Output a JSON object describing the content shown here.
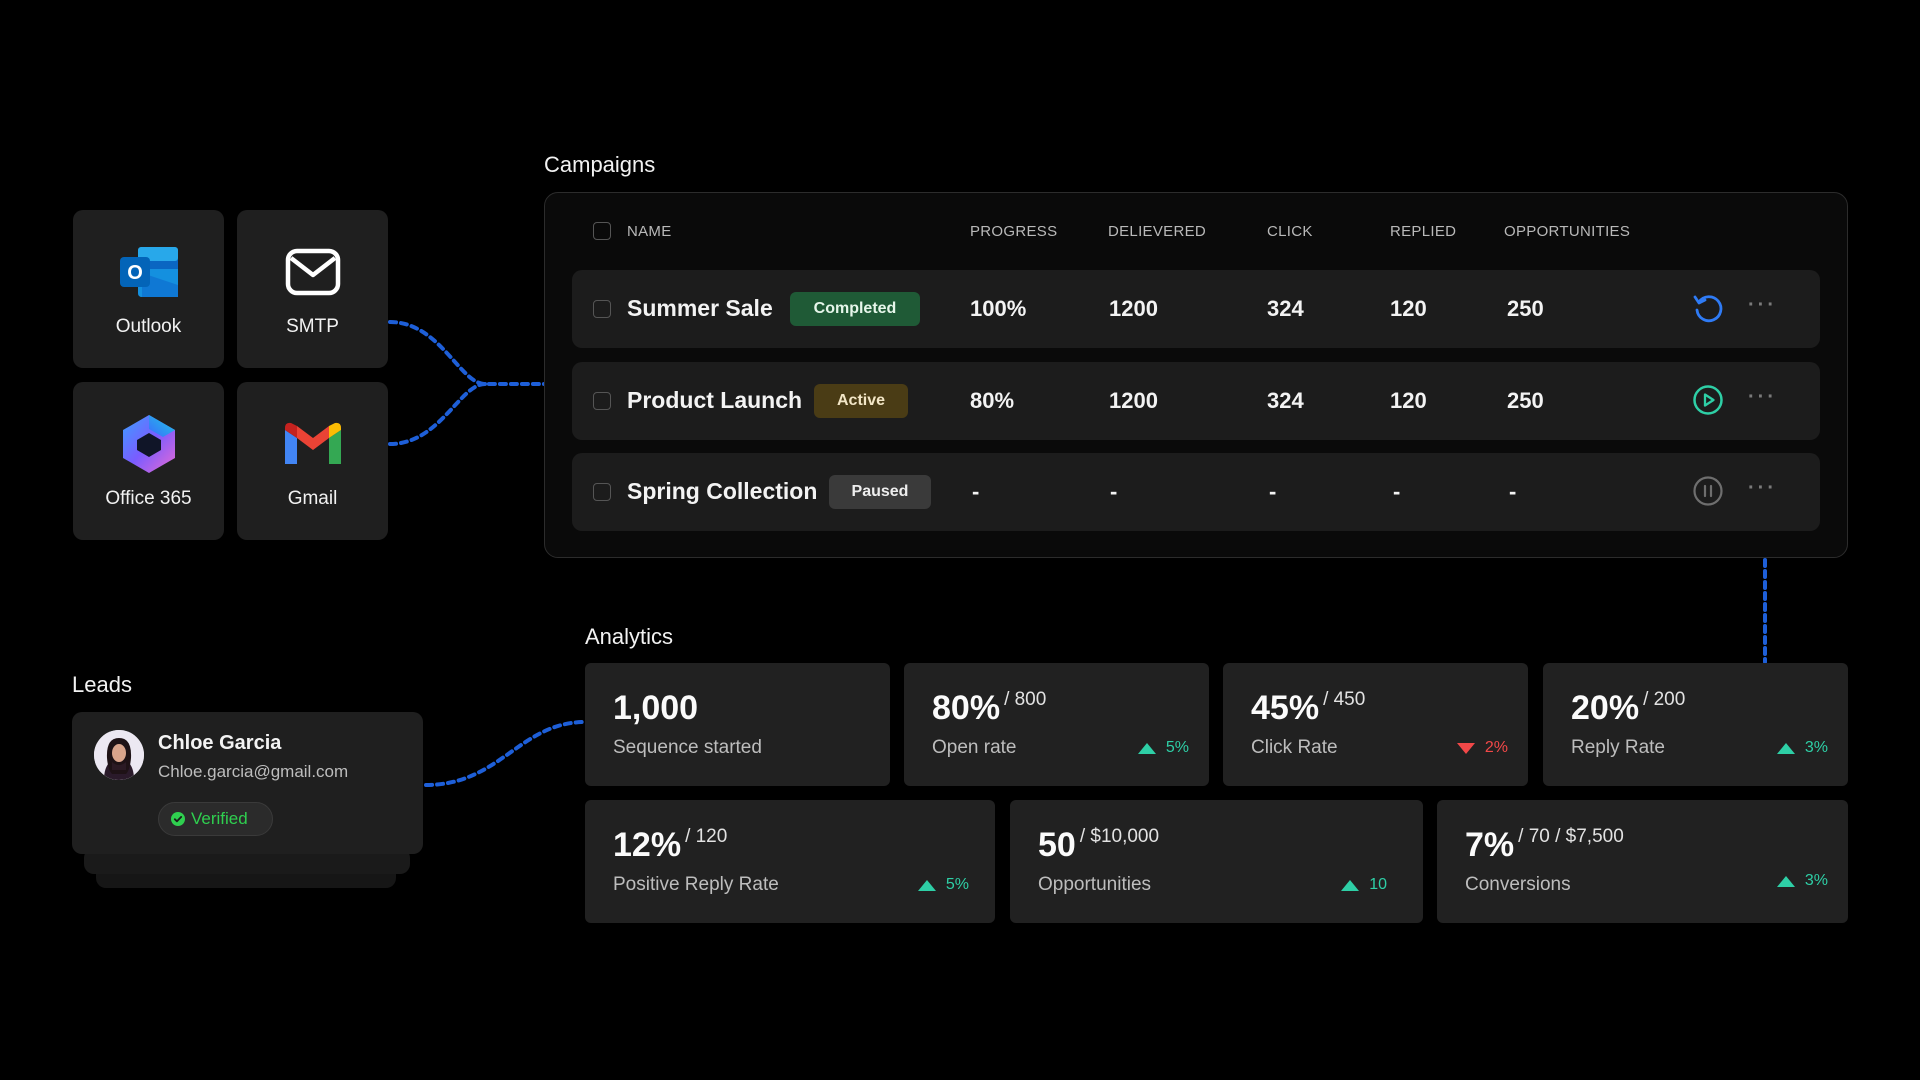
{
  "integrations": [
    {
      "label": "Outlook",
      "icon": "outlook-icon"
    },
    {
      "label": "SMTP",
      "icon": "mail-envelope-icon"
    },
    {
      "label": "Office 365",
      "icon": "office365-icon"
    },
    {
      "label": "Gmail",
      "icon": "gmail-icon"
    }
  ],
  "campaigns": {
    "title": "Campaigns",
    "columns": [
      "NAME",
      "PROGRESS",
      "DELIEVERED",
      "CLICK",
      "REPLIED",
      "OPPORTUNITIES"
    ],
    "rows": [
      {
        "name": "Summer Sale",
        "status": "Completed",
        "progress": "100%",
        "delivered": "1200",
        "click": "324",
        "replied": "120",
        "opportunities": "250",
        "action_icon": "restart-icon",
        "more": "···"
      },
      {
        "name": "Product Launch",
        "status": "Active",
        "progress": "80%",
        "delivered": "1200",
        "click": "324",
        "replied": "120",
        "opportunities": "250",
        "action_icon": "play-icon",
        "more": "···"
      },
      {
        "name": "Spring Collection",
        "status": "Paused",
        "progress": "-",
        "delivered": "-",
        "click": "-",
        "replied": "-",
        "opportunities": "-",
        "action_icon": "pause-icon",
        "more": "···"
      }
    ],
    "status_colors": {
      "Completed": "#1f5a36",
      "Active": "#4a3c15",
      "Paused": "#3a3a3a"
    }
  },
  "leads": {
    "title": "Leads",
    "name": "Chloe Garcia",
    "email": "Chloe.garcia@gmail.com",
    "badge": "Verified"
  },
  "analytics": {
    "title": "Analytics",
    "cards": [
      {
        "value": "1,000",
        "sub": "",
        "label": "Sequence started",
        "trend": "",
        "direction": ""
      },
      {
        "value": "80%",
        "sub": "/ 800",
        "label": "Open rate",
        "trend": "5%",
        "direction": "up"
      },
      {
        "value": "45%",
        "sub": "/ 450",
        "label": "Click Rate",
        "trend": "2%",
        "direction": "down"
      },
      {
        "value": "20%",
        "sub": "/ 200",
        "label": "Reply Rate",
        "trend": "3%",
        "direction": "up"
      },
      {
        "value": "12%",
        "sub": "/ 120",
        "label": "Positive Reply Rate",
        "trend": "5%",
        "direction": "up"
      },
      {
        "value": "50",
        "sub": "/ $10,000",
        "label": "Opportunities",
        "trend": "10",
        "direction": "up"
      },
      {
        "value": "7%",
        "sub": "/ 70 / $7,500",
        "label": "Conversions",
        "trend": "3%",
        "direction": "up"
      }
    ]
  },
  "colors": {
    "background": "#000000",
    "card": "#1f1f1f",
    "connector": "#1e6bff",
    "up": "#2ecfa6",
    "down": "#f24848",
    "verified": "#2fcf4f"
  }
}
